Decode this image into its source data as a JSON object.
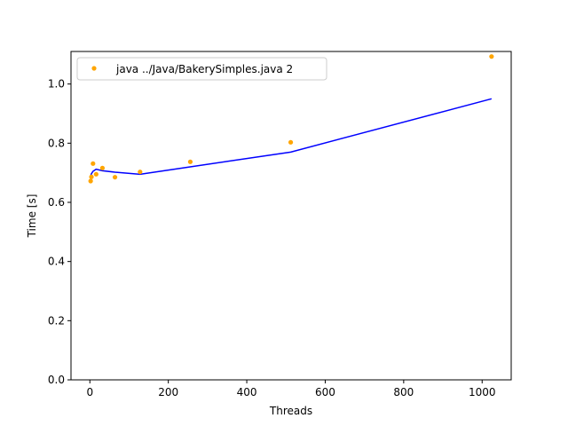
{
  "chart_data": {
    "type": "scatter",
    "title": "",
    "xlabel": "Threads",
    "ylabel": "Time [s]",
    "xlim": [
      -48.1,
      1074.1
    ],
    "ylim": [
      0,
      1.11
    ],
    "xticks": [
      0,
      200,
      400,
      600,
      800,
      1000
    ],
    "yticks": [
      0.0,
      0.2,
      0.4,
      0.6,
      0.8,
      1.0
    ],
    "xtick_labels": [
      "0",
      "200",
      "400",
      "600",
      "800",
      "1000"
    ],
    "ytick_labels": [
      "0.0",
      "0.2",
      "0.4",
      "0.6",
      "0.8",
      "1.0"
    ],
    "grid": false,
    "legend_position": "top-left",
    "series": [
      {
        "name": "java ../Java/BakerySimples.java 2",
        "kind": "scatter",
        "color": "#ffa500",
        "points": [
          [
            2,
            0.672
          ],
          [
            4,
            0.686
          ],
          [
            8,
            0.731
          ],
          [
            16,
            0.695
          ],
          [
            32,
            0.716
          ],
          [
            64,
            0.685
          ],
          [
            128,
            0.703
          ],
          [
            256,
            0.737
          ],
          [
            512,
            0.803
          ],
          [
            1024,
            1.093
          ]
        ]
      },
      {
        "kind": "line",
        "color": "#0000ff",
        "points": [
          [
            1,
            0.682
          ],
          [
            2,
            0.689
          ],
          [
            4,
            0.697
          ],
          [
            8,
            0.705
          ],
          [
            16,
            0.712
          ],
          [
            32,
            0.707
          ],
          [
            64,
            0.702
          ],
          [
            128,
            0.695
          ],
          [
            256,
            0.72
          ],
          [
            512,
            0.77
          ],
          [
            1024,
            0.95
          ]
        ]
      }
    ]
  }
}
